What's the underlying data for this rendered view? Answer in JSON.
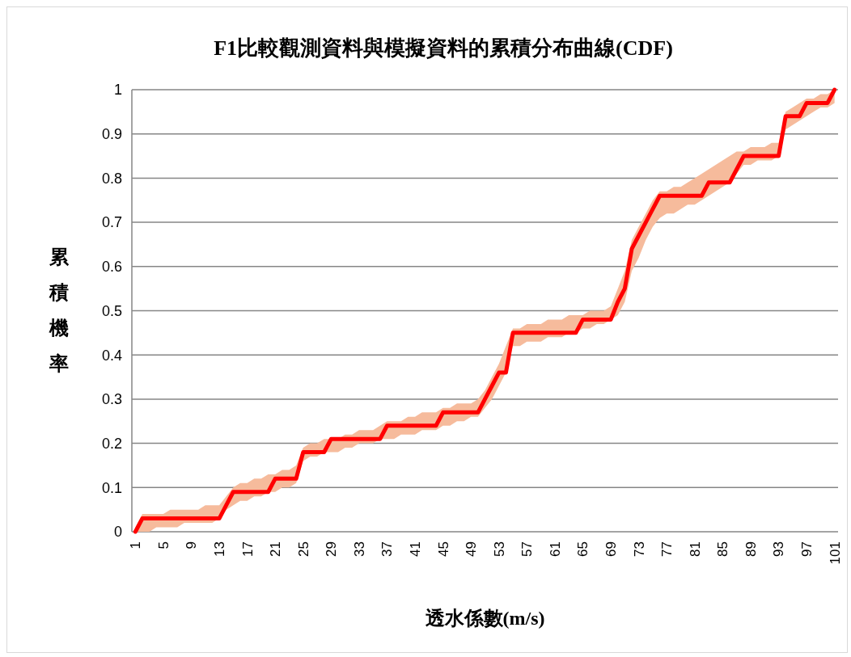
{
  "chart_data": {
    "type": "line",
    "title": "F1比較觀測資料與模擬資料的累積分布曲線(CDF)",
    "xlabel": "透水係數(m/s)",
    "ylabel": "累積機率",
    "categories": [
      "1",
      null,
      null,
      null,
      "5",
      null,
      null,
      null,
      "9",
      null,
      null,
      null,
      "13",
      null,
      null,
      null,
      "17",
      null,
      null,
      null,
      "21",
      null,
      null,
      null,
      "25",
      null,
      null,
      null,
      "29",
      null,
      null,
      null,
      "33",
      null,
      null,
      null,
      "37",
      null,
      null,
      null,
      "41",
      null,
      null,
      null,
      "45",
      null,
      null,
      null,
      "49",
      null,
      null,
      null,
      "53",
      null,
      null,
      null,
      "57",
      null,
      null,
      null,
      "61",
      null,
      null,
      null,
      "65",
      null,
      null,
      null,
      "69",
      null,
      null,
      null,
      "73",
      null,
      null,
      null,
      "77",
      null,
      null,
      null,
      "81",
      null,
      null,
      null,
      "85",
      null,
      null,
      null,
      "89",
      null,
      null,
      null,
      "93",
      null,
      null,
      null,
      "97",
      null,
      null,
      null,
      "101"
    ],
    "series": [
      {
        "color": "#ff0000",
        "values": [
          0,
          0.03,
          0.03,
          0.03,
          0.03,
          0.03,
          0.03,
          0.03,
          0.03,
          0.03,
          0.03,
          0.03,
          0.03,
          0.06,
          0.09,
          0.09,
          0.09,
          0.09,
          0.09,
          0.09,
          0.12,
          0.12,
          0.12,
          0.12,
          0.18,
          0.18,
          0.18,
          0.18,
          0.21,
          0.21,
          0.21,
          0.21,
          0.21,
          0.21,
          0.21,
          0.21,
          0.24,
          0.24,
          0.24,
          0.24,
          0.24,
          0.24,
          0.24,
          0.24,
          0.27,
          0.27,
          0.27,
          0.27,
          0.27,
          0.27,
          0.3,
          0.33,
          0.36,
          0.36,
          0.45,
          0.45,
          0.45,
          0.45,
          0.45,
          0.45,
          0.45,
          0.45,
          0.45,
          0.45,
          0.48,
          0.48,
          0.48,
          0.48,
          0.48,
          0.52,
          0.55,
          0.64,
          0.67,
          0.7,
          0.73,
          0.76,
          0.76,
          0.76,
          0.76,
          0.76,
          0.76,
          0.76,
          0.79,
          0.79,
          0.79,
          0.79,
          0.82,
          0.85,
          0.85,
          0.85,
          0.85,
          0.85,
          0.85,
          0.94,
          0.94,
          0.94,
          0.97,
          0.97,
          0.97,
          0.97,
          1
        ],
        "upper": [
          0.01,
          0.04,
          0.04,
          0.04,
          0.04,
          0.05,
          0.05,
          0.05,
          0.05,
          0.05,
          0.06,
          0.06,
          0.06,
          0.08,
          0.1,
          0.11,
          0.11,
          0.12,
          0.12,
          0.13,
          0.13,
          0.14,
          0.14,
          0.15,
          0.19,
          0.2,
          0.2,
          0.21,
          0.21,
          0.21,
          0.22,
          0.22,
          0.23,
          0.23,
          0.23,
          0.24,
          0.25,
          0.25,
          0.25,
          0.26,
          0.26,
          0.27,
          0.27,
          0.27,
          0.28,
          0.28,
          0.29,
          0.29,
          0.29,
          0.3,
          0.32,
          0.35,
          0.38,
          0.42,
          0.46,
          0.46,
          0.47,
          0.47,
          0.47,
          0.48,
          0.48,
          0.48,
          0.49,
          0.49,
          0.49,
          0.5,
          0.5,
          0.5,
          0.51,
          0.55,
          0.59,
          0.66,
          0.69,
          0.72,
          0.75,
          0.77,
          0.77,
          0.78,
          0.78,
          0.79,
          0.8,
          0.81,
          0.82,
          0.83,
          0.84,
          0.85,
          0.86,
          0.86,
          0.87,
          0.87,
          0.87,
          0.88,
          0.88,
          0.95,
          0.96,
          0.97,
          0.98,
          0.98,
          0.99,
          0.99,
          1
        ],
        "lower": [
          0,
          0,
          0,
          0.01,
          0.01,
          0.01,
          0.01,
          0.02,
          0.02,
          0.02,
          0.02,
          0.02,
          0.03,
          0.05,
          0.06,
          0.07,
          0.07,
          0.08,
          0.08,
          0.09,
          0.09,
          0.1,
          0.1,
          0.11,
          0.16,
          0.17,
          0.17,
          0.18,
          0.18,
          0.18,
          0.19,
          0.19,
          0.2,
          0.2,
          0.2,
          0.21,
          0.21,
          0.21,
          0.22,
          0.22,
          0.22,
          0.23,
          0.23,
          0.23,
          0.24,
          0.24,
          0.25,
          0.25,
          0.26,
          0.26,
          0.28,
          0.3,
          0.33,
          0.36,
          0.42,
          0.42,
          0.43,
          0.43,
          0.43,
          0.44,
          0.44,
          0.44,
          0.45,
          0.45,
          0.46,
          0.46,
          0.47,
          0.47,
          0.48,
          0.49,
          0.52,
          0.59,
          0.62,
          0.66,
          0.69,
          0.71,
          0.72,
          0.72,
          0.73,
          0.74,
          0.74,
          0.75,
          0.76,
          0.77,
          0.78,
          0.79,
          0.81,
          0.83,
          0.83,
          0.84,
          0.84,
          0.84,
          0.85,
          0.91,
          0.92,
          0.93,
          0.94,
          0.95,
          0.96,
          0.96,
          0.97
        ]
      }
    ],
    "ylim": [
      0,
      1
    ],
    "yticks": [
      0,
      0.1,
      0.2,
      0.3,
      0.4,
      0.5,
      0.6,
      0.7,
      0.8,
      0.9,
      1
    ],
    "grid": "y",
    "marker": "none",
    "line_style": "solid"
  }
}
